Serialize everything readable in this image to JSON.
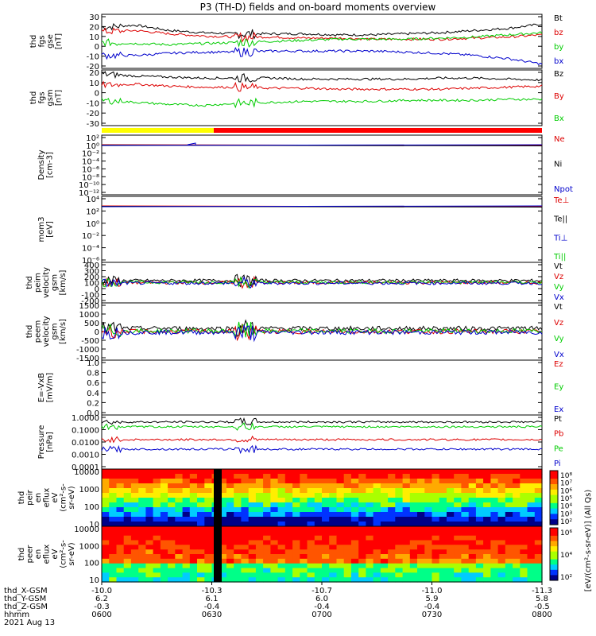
{
  "title": "P3 (TH-D) fields and on-board moments overview",
  "colors": {
    "black": "#000000",
    "red": "#dd0000",
    "green": "#00cc00",
    "blue": "#0000cc"
  },
  "chart_data": [
    {
      "type": "line",
      "panel": "fgs_gse",
      "ylabel": [
        "thd",
        "fgs",
        "gse",
        "[nT]"
      ],
      "ylim": [
        -20,
        30
      ],
      "yticks": [
        "30",
        "20",
        "10",
        "0",
        "-10",
        "-20"
      ],
      "series": [
        {
          "name": "Bt",
          "color": "black",
          "values": [
            18,
            20,
            15,
            13,
            12,
            12,
            12,
            11,
            11,
            12,
            13,
            15,
            17,
            21
          ]
        },
        {
          "name": "bz",
          "color": "red",
          "values": [
            14,
            15,
            12,
            10,
            9,
            9,
            8,
            8,
            7,
            7,
            7,
            8,
            9,
            11
          ]
        },
        {
          "name": "by",
          "color": "green",
          "values": [
            4,
            3,
            2,
            3,
            4,
            5,
            6,
            7,
            7,
            7,
            8,
            9,
            11,
            13
          ]
        },
        {
          "name": "bx",
          "color": "blue",
          "values": [
            -8,
            -8,
            -6,
            -5,
            -5,
            -4,
            -4,
            -4,
            -4,
            -5,
            -6,
            -8,
            -11,
            -16
          ]
        }
      ]
    },
    {
      "type": "line",
      "panel": "fgs_gsm",
      "ylabel": [
        "thd",
        "fgs",
        "gsm",
        "[nT]"
      ],
      "ylim": [
        -35,
        20
      ],
      "yticks": [
        "20",
        "10",
        "0",
        "-10",
        "-20",
        "-30"
      ],
      "series": [
        {
          "name": "Bz",
          "color": "black",
          "values": [
            16,
            14,
            13,
            12,
            12,
            12,
            11,
            11,
            11,
            11,
            12,
            12,
            11,
            10
          ]
        },
        {
          "name": "By",
          "color": "red",
          "values": [
            5,
            6,
            4,
            3,
            3,
            2,
            2,
            1,
            1,
            1,
            1,
            2,
            3,
            4
          ]
        },
        {
          "name": "Bx",
          "color": "green",
          "values": [
            -10,
            -12,
            -14,
            -15,
            -13,
            -12,
            -11,
            -11,
            -11,
            -10,
            -10,
            -10,
            -9,
            -9
          ]
        }
      ]
    },
    {
      "type": "line",
      "panel": "density",
      "ylabel": [
        "Density",
        "[cm-3]"
      ],
      "yticks": [
        "10²",
        "10⁰",
        "10⁻²",
        "10⁻⁴",
        "10⁻⁶",
        "10⁻⁸",
        "10⁻¹⁰",
        "10⁻¹²"
      ],
      "legend": [
        "Ne",
        "Ni",
        "Npot"
      ],
      "legend_colors": [
        "red",
        "black",
        "blue"
      ]
    },
    {
      "type": "line",
      "panel": "temperature",
      "ylabel": [
        "mom3",
        "[eV]"
      ],
      "yticks": [
        "10⁴",
        "10²",
        "10⁰",
        "10⁻²",
        "10⁻⁴",
        "10⁻⁶"
      ],
      "legend": [
        "Te⊥",
        "Te||",
        "Ti⊥",
        "Ti||"
      ],
      "legend_colors": [
        "red",
        "black",
        "blue",
        "green"
      ]
    },
    {
      "type": "line",
      "panel": "peim_velocity",
      "ylabel": [
        "thd",
        "peim",
        "velocity",
        "gsm",
        "[km/s]"
      ],
      "ylim": [
        -200,
        400
      ],
      "yticks": [
        "400",
        "300",
        "200",
        "100",
        "0",
        "-100",
        "-200"
      ],
      "legend": [
        "Vt",
        "Vz",
        "Vy",
        "Vx"
      ],
      "legend_colors": [
        "black",
        "red",
        "green",
        "blue"
      ]
    },
    {
      "type": "line",
      "panel": "peem_velocity",
      "ylabel": [
        "thd",
        "peem",
        "velocity",
        "gsm",
        "[km/s]"
      ],
      "ylim": [
        -1500,
        1500
      ],
      "yticks": [
        "1500",
        "1000",
        "500",
        "0",
        "-500",
        "-1000",
        "-1500"
      ],
      "legend": [
        "Vt",
        "Vz",
        "Vy",
        "Vx"
      ],
      "legend_colors": [
        "black",
        "red",
        "green",
        "blue"
      ]
    },
    {
      "type": "line",
      "panel": "efield",
      "ylabel": [
        "E=-VxB",
        "[mV/m]"
      ],
      "ylim": [
        0,
        1
      ],
      "yticks": [
        "1.0",
        "0.8",
        "0.6",
        "0.4",
        "0.2",
        "0.0"
      ],
      "legend": [
        "Ez",
        "Ey",
        "Ex"
      ],
      "legend_colors": [
        "red",
        "green",
        "blue"
      ]
    },
    {
      "type": "line",
      "panel": "pressure",
      "ylabel": [
        "Pressure",
        "[nPa]"
      ],
      "yticks": [
        "1.0000",
        "0.1000",
        "0.0100",
        "0.0010",
        "0.0001"
      ],
      "legend": [
        "Pt",
        "Pb",
        "Pe",
        "Pi"
      ],
      "legend_colors": [
        "black",
        "red",
        "green",
        "blue"
      ]
    },
    {
      "type": "heatmap",
      "panel": "peir",
      "ylabel": [
        "thd",
        "peir",
        "en",
        "eflux",
        "eV",
        "(cm²-s-",
        "sr-eV)"
      ],
      "yticks": [
        "10000",
        "1000",
        "100",
        "10"
      ],
      "colorbar_ticks": [
        "10⁸",
        "10⁷",
        "10⁶",
        "10⁵",
        "10⁴",
        "10³",
        "10²"
      ]
    },
    {
      "type": "heatmap",
      "panel": "peer",
      "ylabel": [
        "thd",
        "peer",
        "en",
        "eflux",
        "eV",
        "(cm²-s-",
        "sr-eV)"
      ],
      "yticks": [
        "10000",
        "1000",
        "100",
        "10"
      ],
      "colorbar_ticks": [
        "10⁶",
        "10⁴",
        "10²"
      ]
    }
  ],
  "colorbar_label": "[eV/(cm²-s-sr-eV)] (All Qs)",
  "xaxis": {
    "rows": [
      {
        "label": "thd_X-GSM",
        "values": [
          "-10.0",
          "-10.3",
          "-10.7",
          "-11.0",
          "-11.3"
        ]
      },
      {
        "label": "thd_Y-GSM",
        "values": [
          "6.2",
          "6.1",
          "6.0",
          "5.9",
          "5.8"
        ]
      },
      {
        "label": "thd_Z-GSM",
        "values": [
          "-0.3",
          "-0.4",
          "-0.4",
          "-0.4",
          "-0.5"
        ]
      },
      {
        "label": "hhmm",
        "values": [
          "0600",
          "0630",
          "0700",
          "0730",
          "0800"
        ]
      }
    ],
    "date": "2021 Aug 13"
  }
}
